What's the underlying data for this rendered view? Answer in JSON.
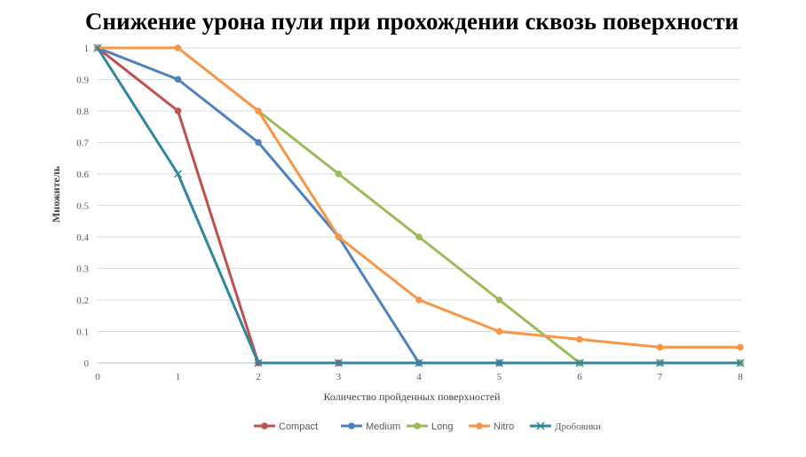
{
  "chart_data": {
    "type": "line",
    "title": "Снижение урона пули при прохождении сквозь поверхности",
    "xlabel": "Количество пройденных поверхностей",
    "ylabel": "Множитель",
    "x": [
      0,
      1,
      2,
      3,
      4,
      5,
      6,
      7,
      8
    ],
    "x_tick_labels": [
      "0",
      "1",
      "2",
      "3",
      "4",
      "5",
      "6",
      "7",
      "8"
    ],
    "y_tick_labels": [
      "0",
      "0.1",
      "0.2",
      "0.3",
      "0.4",
      "0.5",
      "0.6",
      "0.7",
      "0.8",
      "0.9",
      "1"
    ],
    "xlim": [
      0,
      8
    ],
    "ylim": [
      0,
      1
    ],
    "grid": "horizontal",
    "legend_position": "bottom",
    "series": [
      {
        "name": "Compact",
        "color": "#c0504d",
        "marker": "circle",
        "values": [
          1,
          0.8,
          0,
          0,
          0,
          0,
          0,
          0,
          0
        ]
      },
      {
        "name": "Medium",
        "color": "#4f81bd",
        "marker": "circle",
        "values": [
          1,
          0.9,
          0.7,
          0.4,
          0,
          0,
          0,
          0,
          0
        ]
      },
      {
        "name": "Long",
        "color": "#9bbb59",
        "marker": "circle",
        "values": [
          1,
          1,
          0.8,
          0.6,
          0.4,
          0.2,
          0,
          0,
          0
        ]
      },
      {
        "name": "Nitro",
        "color": "#f79646",
        "marker": "circle",
        "values": [
          1,
          1,
          0.8,
          0.4,
          0.2,
          0.1,
          0.075,
          0.05,
          0.05
        ]
      },
      {
        "name": "Дробовики",
        "color": "#31859c",
        "marker": "x",
        "values": [
          1,
          0.6,
          0,
          0,
          0,
          0,
          0,
          0,
          0
        ]
      }
    ]
  }
}
